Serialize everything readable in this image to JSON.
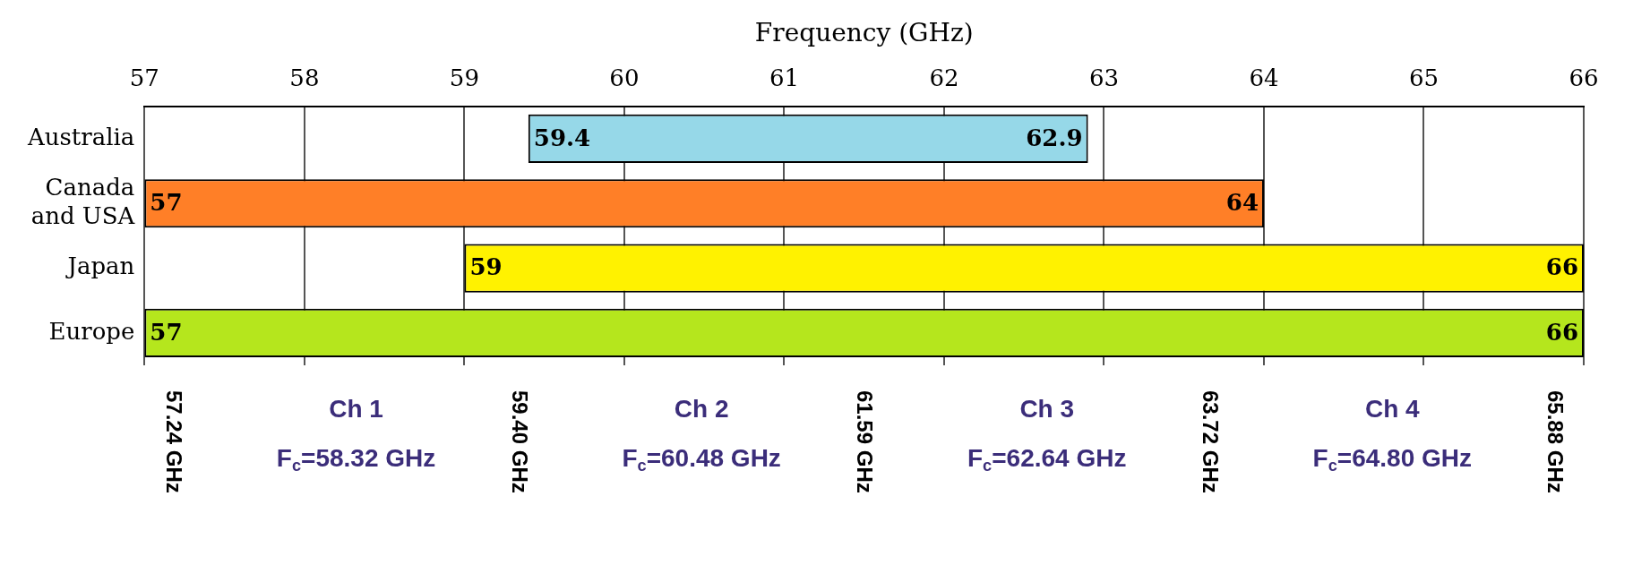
{
  "chart_data": {
    "type": "bar",
    "orientation": "horizontal",
    "xlabel": "Frequency (GHz)",
    "categories": [
      "Australia",
      "Canada and USA",
      "Japan",
      "Europe"
    ],
    "base": [
      59.4,
      57,
      59,
      57
    ],
    "values": [
      3.5,
      7,
      7,
      9
    ],
    "colors": [
      "#96d8e8",
      "#ff7f27",
      "#fff200",
      "#b5e61d"
    ],
    "xlim": [
      57,
      66
    ],
    "xticks": [
      57,
      58,
      59,
      60,
      61,
      62,
      63,
      64,
      65,
      66
    ],
    "grid": "x",
    "legend": false,
    "annotations": [
      {
        "text": "59.4",
        "x": 59.4,
        "y": "Australia"
      },
      {
        "text": "62.9",
        "x": 62.9,
        "y": "Australia"
      },
      {
        "text": "57",
        "x": 57,
        "y": "Canada and USA"
      },
      {
        "text": "64",
        "x": 64,
        "y": "Canada and USA"
      },
      {
        "text": "59",
        "x": 59,
        "y": "Japan"
      },
      {
        "text": "66",
        "x": 66,
        "y": "Japan"
      },
      {
        "text": "57",
        "x": 57,
        "y": "Europe"
      },
      {
        "text": "66",
        "x": 66,
        "y": "Europe"
      },
      "57.24 GHz",
      "Ch 1",
      "F$_{c}$=58.32 GHz",
      "59.40 GHz",
      "Ch 2",
      "F$_{c}$=60.48 GHz",
      "61.59 GHz",
      "Ch 3",
      "F$_{c}$=62.64 GHz",
      "63.72 GHz",
      "Ch 4",
      "F$_{c}$=64.80 GHz",
      "65.88 GHz"
    ]
  }
}
